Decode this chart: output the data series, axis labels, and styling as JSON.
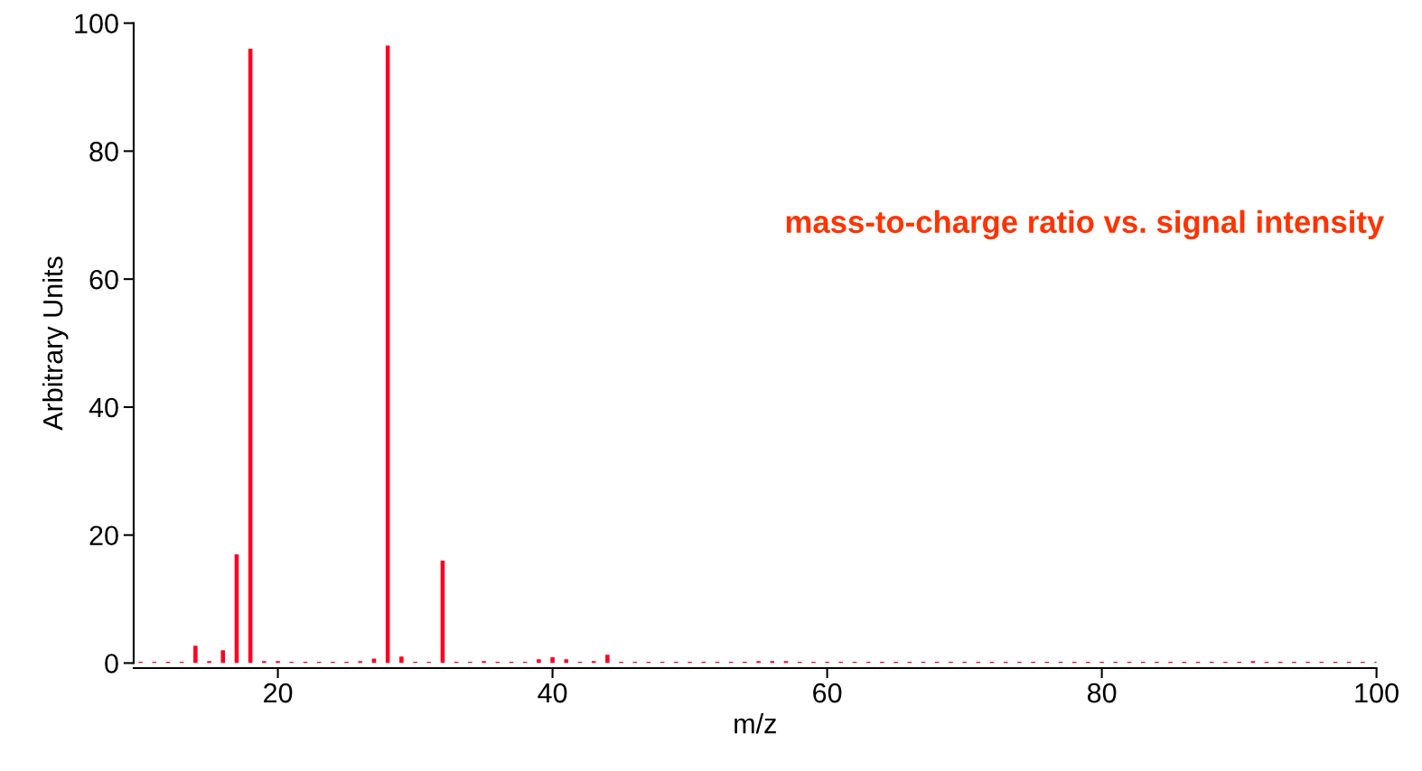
{
  "chart_data": {
    "type": "bar",
    "xlabel": "m/z",
    "ylabel": "Arbitrary Units",
    "annotations": [
      "mass-to-charge ratio vs. signal intensity"
    ],
    "x": [
      10,
      11,
      12,
      13,
      14,
      15,
      16,
      17,
      18,
      19,
      20,
      21,
      22,
      23,
      24,
      25,
      26,
      27,
      28,
      29,
      30,
      31,
      32,
      33,
      34,
      35,
      36,
      37,
      38,
      39,
      40,
      41,
      42,
      43,
      44,
      45,
      46,
      47,
      48,
      49,
      50,
      51,
      52,
      53,
      54,
      55,
      56,
      57,
      58,
      59,
      60,
      61,
      62,
      63,
      64,
      65,
      66,
      67,
      68,
      69,
      70,
      71,
      72,
      73,
      74,
      75,
      76,
      77,
      78,
      79,
      80,
      81,
      82,
      83,
      84,
      85,
      86,
      87,
      88,
      89,
      90,
      91,
      92,
      93,
      94,
      95,
      96,
      97,
      98,
      99,
      100
    ],
    "series": [
      {
        "color": "#ff0022",
        "values": [
          0.2,
          0.2,
          0.2,
          0.2,
          2.7,
          0.3,
          2.0,
          17,
          96,
          0.3,
          0.3,
          0.2,
          0.2,
          0.2,
          0.2,
          0.2,
          0.3,
          0.7,
          96.5,
          1.0,
          0.2,
          0.2,
          16,
          0.2,
          0.2,
          0.3,
          0.2,
          0.2,
          0.2,
          0.6,
          0.9,
          0.6,
          0.2,
          0.3,
          1.3,
          0.2,
          0.2,
          0.2,
          0.2,
          0.2,
          0.2,
          0.2,
          0.2,
          0.2,
          0.2,
          0.3,
          0.3,
          0.3,
          0.2,
          0.2,
          0.2,
          0.2,
          0.2,
          0.2,
          0.2,
          0.2,
          0.2,
          0.2,
          0.2,
          0.2,
          0.2,
          0.2,
          0.2,
          0.2,
          0.2,
          0.2,
          0.2,
          0.2,
          0.2,
          0.2,
          0.2,
          0.2,
          0.2,
          0.2,
          0.2,
          0.2,
          0.2,
          0.2,
          0.2,
          0.2,
          0.2,
          0.3,
          0.2,
          0.2,
          0.2,
          0.2,
          0.2,
          0.2,
          0.2,
          0.2,
          0.2
        ]
      }
    ],
    "xlim": [
      9.5,
      100
    ],
    "ylim": [
      0,
      100
    ],
    "xticks": [
      20,
      40,
      60,
      80,
      100
    ],
    "yticks": [
      0,
      20,
      40,
      60,
      80,
      100
    ],
    "grid": false,
    "legend": false
  }
}
